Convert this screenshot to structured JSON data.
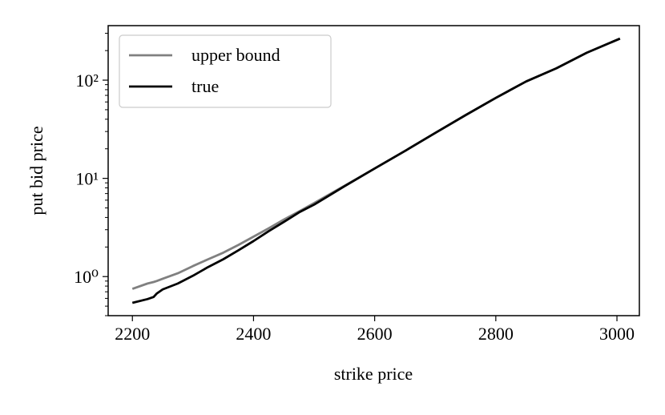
{
  "chart_data": {
    "type": "line",
    "xlabel": "strike price",
    "ylabel": "put bid price",
    "x": [
      2200,
      2225,
      2235,
      2240,
      2250,
      2275,
      2300,
      2325,
      2350,
      2375,
      2400,
      2425,
      2450,
      2475,
      2500,
      2550,
      2600,
      2650,
      2700,
      2750,
      2800,
      2850,
      2900,
      2950,
      3005
    ],
    "series": [
      {
        "name": "upper bound",
        "color": "#808080",
        "values": [
          0.75,
          0.85,
          0.88,
          0.9,
          0.95,
          1.08,
          1.28,
          1.5,
          1.75,
          2.1,
          2.55,
          3.1,
          3.8,
          4.6,
          5.6,
          8.4,
          12.6,
          19,
          29,
          44,
          66,
          97,
          132,
          190,
          265
        ]
      },
      {
        "name": "true",
        "color": "#000000",
        "values": [
          0.54,
          0.59,
          0.62,
          0.67,
          0.74,
          0.85,
          1.02,
          1.25,
          1.5,
          1.85,
          2.3,
          2.9,
          3.6,
          4.5,
          5.4,
          8.3,
          12.6,
          19,
          29,
          44,
          66,
          97,
          132,
          190,
          265
        ]
      }
    ],
    "xlim": [
      2160,
      3037
    ],
    "xticks": [
      2200,
      2400,
      2600,
      2800,
      3000
    ],
    "ylim": [
      0.4,
      359
    ],
    "ylog": true,
    "yticks": [
      {
        "value": 1,
        "label": "10⁰"
      },
      {
        "value": 10,
        "label": "10¹"
      },
      {
        "value": 100,
        "label": "10²"
      }
    ],
    "yticks_minor": [
      0.4,
      0.5,
      0.6,
      0.7,
      0.8,
      0.9,
      2,
      3,
      4,
      5,
      6,
      7,
      8,
      9,
      20,
      30,
      40,
      50,
      60,
      70,
      80,
      90,
      200,
      300
    ],
    "legend": "upper left"
  }
}
